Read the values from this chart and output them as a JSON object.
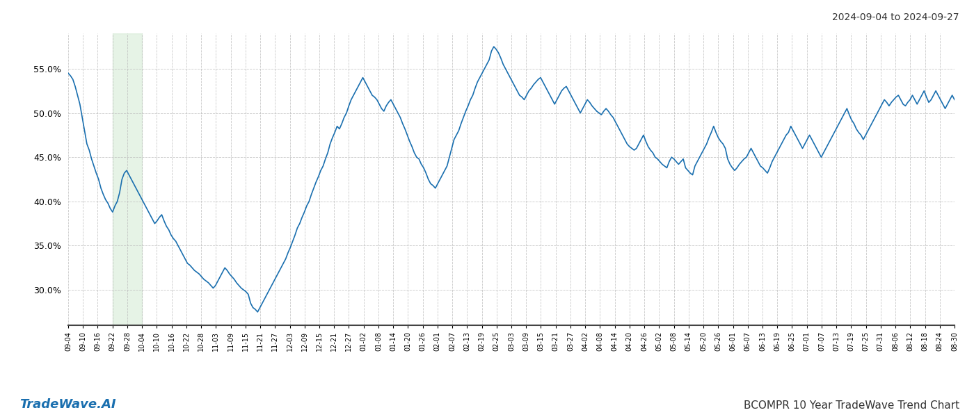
{
  "title_right": "2024-09-04 to 2024-09-27",
  "label_left": "TradeWave.AI",
  "label_right": "BCOMPR 10 Year TradeWave Trend Chart",
  "line_color": "#1a6faf",
  "line_width": 1.2,
  "shade_color": "#c8e6c9",
  "shade_alpha": 0.45,
  "shade_xstart_label": "09-22",
  "shade_xend_label": "10-04",
  "background_color": "#ffffff",
  "grid_color": "#bbbbbb",
  "grid_linestyle": "--",
  "ylim_low": 26.0,
  "ylim_high": 59.0,
  "ytick_vals": [
    30.0,
    35.0,
    40.0,
    45.0,
    50.0,
    55.0
  ],
  "ytick_labels": [
    "30.0%",
    "35.0%",
    "40.0%",
    "45.0%",
    "50.0%",
    "55.0%"
  ],
  "xtick_labels": [
    "09-04",
    "09-10",
    "09-16",
    "09-22",
    "09-28",
    "10-04",
    "10-10",
    "10-16",
    "10-22",
    "10-28",
    "11-03",
    "11-09",
    "11-15",
    "11-21",
    "11-27",
    "12-03",
    "12-09",
    "12-15",
    "12-21",
    "12-27",
    "01-02",
    "01-08",
    "01-14",
    "01-20",
    "01-26",
    "02-01",
    "02-07",
    "02-13",
    "02-19",
    "02-25",
    "03-03",
    "03-09",
    "03-15",
    "03-21",
    "03-27",
    "04-02",
    "04-08",
    "04-14",
    "04-20",
    "04-26",
    "05-02",
    "05-08",
    "05-14",
    "05-20",
    "05-26",
    "06-01",
    "06-07",
    "06-13",
    "06-19",
    "06-25",
    "07-01",
    "07-07",
    "07-13",
    "07-19",
    "07-25",
    "07-31",
    "08-06",
    "08-12",
    "08-18",
    "08-24",
    "08-30"
  ],
  "values": [
    54.5,
    54.2,
    53.8,
    53.0,
    52.0,
    51.0,
    49.5,
    48.0,
    46.5,
    45.8,
    44.8,
    44.0,
    43.2,
    42.5,
    41.5,
    40.8,
    40.2,
    39.8,
    39.2,
    38.8,
    39.5,
    40.0,
    41.0,
    42.5,
    43.2,
    43.5,
    43.0,
    42.5,
    42.0,
    41.5,
    41.0,
    40.5,
    40.0,
    39.5,
    39.0,
    38.5,
    38.0,
    37.5,
    37.8,
    38.2,
    38.5,
    37.8,
    37.2,
    36.8,
    36.2,
    35.8,
    35.5,
    35.0,
    34.5,
    34.0,
    33.5,
    33.0,
    32.8,
    32.5,
    32.2,
    32.0,
    31.8,
    31.5,
    31.2,
    31.0,
    30.8,
    30.5,
    30.2,
    30.5,
    31.0,
    31.5,
    32.0,
    32.5,
    32.2,
    31.8,
    31.5,
    31.2,
    30.8,
    30.5,
    30.2,
    30.0,
    29.8,
    29.5,
    28.5,
    28.0,
    27.8,
    27.5,
    28.0,
    28.5,
    29.0,
    29.5,
    30.0,
    30.5,
    31.0,
    31.5,
    32.0,
    32.5,
    33.0,
    33.5,
    34.2,
    34.8,
    35.5,
    36.2,
    37.0,
    37.5,
    38.2,
    38.8,
    39.5,
    40.0,
    40.8,
    41.5,
    42.2,
    42.8,
    43.5,
    44.0,
    44.8,
    45.5,
    46.5,
    47.2,
    47.8,
    48.5,
    48.2,
    48.8,
    49.5,
    50.0,
    50.8,
    51.5,
    52.0,
    52.5,
    53.0,
    53.5,
    54.0,
    53.5,
    53.0,
    52.5,
    52.0,
    51.8,
    51.5,
    51.0,
    50.5,
    50.2,
    50.8,
    51.2,
    51.5,
    51.0,
    50.5,
    50.0,
    49.5,
    48.8,
    48.2,
    47.5,
    46.8,
    46.2,
    45.5,
    45.0,
    44.8,
    44.2,
    43.8,
    43.2,
    42.5,
    42.0,
    41.8,
    41.5,
    42.0,
    42.5,
    43.0,
    43.5,
    44.0,
    45.0,
    46.0,
    47.0,
    47.5,
    48.0,
    48.8,
    49.5,
    50.2,
    50.8,
    51.5,
    52.0,
    52.8,
    53.5,
    54.0,
    54.5,
    55.0,
    55.5,
    56.0,
    57.0,
    57.5,
    57.2,
    56.8,
    56.2,
    55.5,
    55.0,
    54.5,
    54.0,
    53.5,
    53.0,
    52.5,
    52.0,
    51.8,
    51.5,
    52.0,
    52.5,
    52.8,
    53.2,
    53.5,
    53.8,
    54.0,
    53.5,
    53.0,
    52.5,
    52.0,
    51.5,
    51.0,
    51.5,
    52.0,
    52.5,
    52.8,
    53.0,
    52.5,
    52.0,
    51.5,
    51.0,
    50.5,
    50.0,
    50.5,
    51.0,
    51.5,
    51.2,
    50.8,
    50.5,
    50.2,
    50.0,
    49.8,
    50.2,
    50.5,
    50.2,
    49.8,
    49.5,
    49.0,
    48.5,
    48.0,
    47.5,
    47.0,
    46.5,
    46.2,
    46.0,
    45.8,
    46.0,
    46.5,
    47.0,
    47.5,
    46.8,
    46.2,
    45.8,
    45.5,
    45.0,
    44.8,
    44.5,
    44.2,
    44.0,
    43.8,
    44.5,
    45.0,
    44.8,
    44.5,
    44.2,
    44.5,
    44.8,
    43.8,
    43.5,
    43.2,
    43.0,
    44.0,
    44.5,
    45.0,
    45.5,
    46.0,
    46.5,
    47.2,
    47.8,
    48.5,
    47.8,
    47.2,
    46.8,
    46.5,
    46.0,
    44.8,
    44.2,
    43.8,
    43.5,
    43.8,
    44.2,
    44.5,
    44.8,
    45.0,
    45.5,
    46.0,
    45.5,
    45.0,
    44.5,
    44.0,
    43.8,
    43.5,
    43.2,
    43.8,
    44.5,
    45.0,
    45.5,
    46.0,
    46.5,
    47.0,
    47.5,
    47.8,
    48.5,
    48.0,
    47.5,
    47.0,
    46.5,
    46.0,
    46.5,
    47.0,
    47.5,
    47.0,
    46.5,
    46.0,
    45.5,
    45.0,
    45.5,
    46.0,
    46.5,
    47.0,
    47.5,
    48.0,
    48.5,
    49.0,
    49.5,
    50.0,
    50.5,
    49.8,
    49.2,
    48.8,
    48.2,
    47.8,
    47.5,
    47.0,
    47.5,
    48.0,
    48.5,
    49.0,
    49.5,
    50.0,
    50.5,
    51.0,
    51.5,
    51.2,
    50.8,
    51.2,
    51.5,
    51.8,
    52.0,
    51.5,
    51.0,
    50.8,
    51.2,
    51.5,
    52.0,
    51.5,
    51.0,
    51.5,
    52.0,
    52.5,
    51.8,
    51.2,
    51.5,
    52.0,
    52.5,
    52.0,
    51.5,
    51.0,
    50.5,
    51.0,
    51.5,
    52.0,
    51.5
  ]
}
